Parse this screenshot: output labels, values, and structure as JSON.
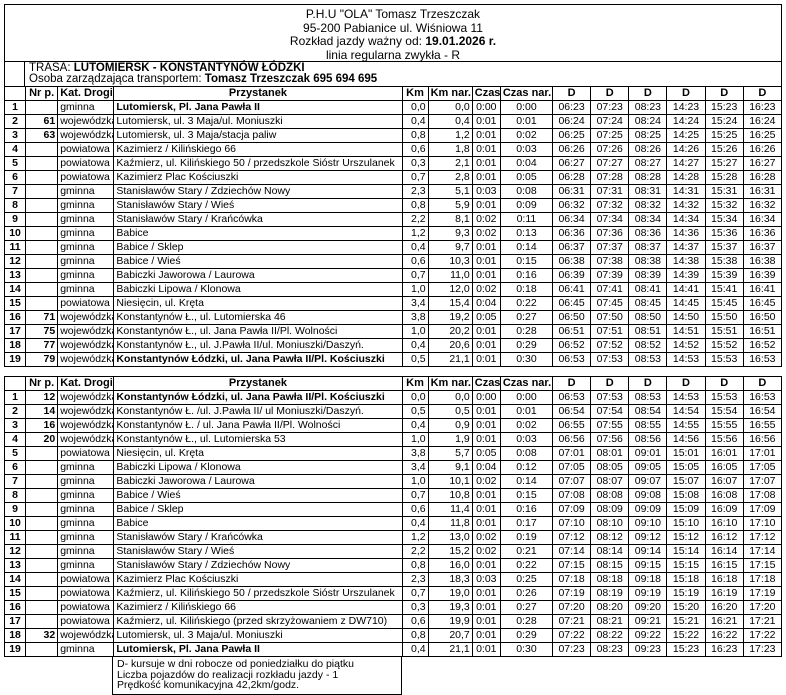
{
  "header": {
    "company": "P.H.U \"OLA\" Tomasz Trzeszczak",
    "address": "95-200 Pabianice ul. Wiśniowa 11",
    "valid_label": "Rozkład jazdy ważny od:",
    "valid_date": "19.01.2026 r.",
    "line_type": "linia regularna zwykła - R"
  },
  "route": {
    "trasa_label": "TRASA:",
    "trasa_value": "LUTOMIERSK - KONSTANTYNÓW ŁÓDZKI",
    "manager_label": "Osoba zarządzająca transportem:",
    "manager_value": "Tomasz Trzeszczak 695 694 695"
  },
  "columns": [
    "Nr p.",
    "Kat. Drogi",
    "Przystanek",
    "Km",
    "Km nar.",
    "Czas",
    "Czas nar.",
    "D",
    "D",
    "D",
    "D",
    "D",
    "D"
  ],
  "tables": [
    {
      "rows": [
        {
          "no": "1",
          "nr": "",
          "kat": "gminna",
          "stop": "Lutomiersk, Pl. Jana Pawła II",
          "bold": true,
          "km": "0,0",
          "km_nar": "0,0",
          "czas": "0:00",
          "czas_nar": "0:00",
          "d": [
            "06:23",
            "07:23",
            "08:23",
            "14:23",
            "15:23",
            "16:23"
          ]
        },
        {
          "no": "2",
          "nr": "61",
          "kat": "wojewódzka",
          "stop": "Lutomiersk, ul. 3 Maja/ul. Moniuszki",
          "bold": false,
          "km": "0,4",
          "km_nar": "0,4",
          "czas": "0:01",
          "czas_nar": "0:01",
          "d": [
            "06:24",
            "07:24",
            "08:24",
            "14:24",
            "15:24",
            "16:24"
          ]
        },
        {
          "no": "3",
          "nr": "63",
          "kat": "wojewódzka",
          "stop": "Lutomiersk, ul. 3 Maja/stacja paliw",
          "bold": false,
          "km": "0,8",
          "km_nar": "1,2",
          "czas": "0:01",
          "czas_nar": "0:02",
          "d": [
            "06:25",
            "07:25",
            "08:25",
            "14:25",
            "15:25",
            "16:25"
          ]
        },
        {
          "no": "4",
          "nr": "",
          "kat": "powiatowa",
          "stop": "Kazimierz / Kilińskiego 66",
          "bold": false,
          "km": "0,6",
          "km_nar": "1,8",
          "czas": "0:01",
          "czas_nar": "0:03",
          "d": [
            "06:26",
            "07:26",
            "08:26",
            "14:26",
            "15:26",
            "16:26"
          ]
        },
        {
          "no": "5",
          "nr": "",
          "kat": "powiatowa",
          "stop": "Kaźmierz, ul. Kilińskiego 50 / przedszkole Sióstr Urszulanek",
          "bold": false,
          "km": "0,3",
          "km_nar": "2,1",
          "czas": "0:01",
          "czas_nar": "0:04",
          "d": [
            "06:27",
            "07:27",
            "08:27",
            "14:27",
            "15:27",
            "16:27"
          ]
        },
        {
          "no": "6",
          "nr": "",
          "kat": "powiatowa",
          "stop": "Kazimierz Plac Kościuszki",
          "bold": false,
          "km": "0,7",
          "km_nar": "2,8",
          "czas": "0:01",
          "czas_nar": "0:05",
          "d": [
            "06:28",
            "07:28",
            "08:28",
            "14:28",
            "15:28",
            "16:28"
          ]
        },
        {
          "no": "7",
          "nr": "",
          "kat": "gminna",
          "stop": "Stanisławów Stary / Zdziechów Nowy",
          "bold": false,
          "km": "2,3",
          "km_nar": "5,1",
          "czas": "0:03",
          "czas_nar": "0:08",
          "d": [
            "06:31",
            "07:31",
            "08:31",
            "14:31",
            "15:31",
            "16:31"
          ]
        },
        {
          "no": "8",
          "nr": "",
          "kat": "gminna",
          "stop": "Stanisławów Stary / Wieś",
          "bold": false,
          "km": "0,8",
          "km_nar": "5,9",
          "czas": "0:01",
          "czas_nar": "0:09",
          "d": [
            "06:32",
            "07:32",
            "08:32",
            "14:32",
            "15:32",
            "16:32"
          ]
        },
        {
          "no": "9",
          "nr": "",
          "kat": "gminna",
          "stop": "Stanisławów Stary / Krańcówka",
          "bold": false,
          "km": "2,2",
          "km_nar": "8,1",
          "czas": "0:02",
          "czas_nar": "0:11",
          "d": [
            "06:34",
            "07:34",
            "08:34",
            "14:34",
            "15:34",
            "16:34"
          ]
        },
        {
          "no": "10",
          "nr": "",
          "kat": "gminna",
          "stop": "Babice",
          "bold": false,
          "km": "1,2",
          "km_nar": "9,3",
          "czas": "0:02",
          "czas_nar": "0:13",
          "d": [
            "06:36",
            "07:36",
            "08:36",
            "14:36",
            "15:36",
            "16:36"
          ]
        },
        {
          "no": "11",
          "nr": "",
          "kat": "gminna",
          "stop": "Babice / Sklep",
          "bold": false,
          "km": "0,4",
          "km_nar": "9,7",
          "czas": "0:01",
          "czas_nar": "0:14",
          "d": [
            "06:37",
            "07:37",
            "08:37",
            "14:37",
            "15:37",
            "16:37"
          ]
        },
        {
          "no": "12",
          "nr": "",
          "kat": "gminna",
          "stop": "Babice / Wieś",
          "bold": false,
          "km": "0,6",
          "km_nar": "10,3",
          "czas": "0:01",
          "czas_nar": "0:15",
          "d": [
            "06:38",
            "07:38",
            "08:38",
            "14:38",
            "15:38",
            "16:38"
          ]
        },
        {
          "no": "13",
          "nr": "",
          "kat": "gminna",
          "stop": "Babiczki Jaworowa / Laurowa",
          "bold": false,
          "km": "0,7",
          "km_nar": "11,0",
          "czas": "0:01",
          "czas_nar": "0:16",
          "d": [
            "06:39",
            "07:39",
            "08:39",
            "14:39",
            "15:39",
            "16:39"
          ]
        },
        {
          "no": "14",
          "nr": "",
          "kat": "gminna",
          "stop": "Babiczki Lipowa / Klonowa",
          "bold": false,
          "km": "1,0",
          "km_nar": "12,0",
          "czas": "0:02",
          "czas_nar": "0:18",
          "d": [
            "06:41",
            "07:41",
            "08:41",
            "14:41",
            "15:41",
            "16:41"
          ]
        },
        {
          "no": "15",
          "nr": "",
          "kat": "powiatowa",
          "stop": "Niesięcin, ul. Kręta",
          "bold": false,
          "km": "3,4",
          "km_nar": "15,4",
          "czas": "0:04",
          "czas_nar": "0:22",
          "d": [
            "06:45",
            "07:45",
            "08:45",
            "14:45",
            "15:45",
            "16:45"
          ]
        },
        {
          "no": "16",
          "nr": "71",
          "kat": "wojewódzka",
          "stop": "Konstantynów Ł., ul. Lutomierska 46",
          "bold": false,
          "km": "3,8",
          "km_nar": "19,2",
          "czas": "0:05",
          "czas_nar": "0:27",
          "d": [
            "06:50",
            "07:50",
            "08:50",
            "14:50",
            "15:50",
            "16:50"
          ]
        },
        {
          "no": "17",
          "nr": "75",
          "kat": "wojewódzka",
          "stop": "Konstantynów Ł., ul. Jana Pawła II/Pl. Wolności",
          "bold": false,
          "km": "1,0",
          "km_nar": "20,2",
          "czas": "0:01",
          "czas_nar": "0:28",
          "d": [
            "06:51",
            "07:51",
            "08:51",
            "14:51",
            "15:51",
            "16:51"
          ]
        },
        {
          "no": "18",
          "nr": "77",
          "kat": "wojewódzka",
          "stop": "Konstantynów Ł., ul. J.Pawła II/ul. Moniuszki/Daszyń.",
          "bold": false,
          "km": "0,4",
          "km_nar": "20,6",
          "czas": "0:01",
          "czas_nar": "0:29",
          "d": [
            "06:52",
            "07:52",
            "08:52",
            "14:52",
            "15:52",
            "16:52"
          ]
        },
        {
          "no": "19",
          "nr": "79",
          "kat": "wojewódzka",
          "stop": "Konstantynów Łódzki, ul. Jana Pawła II/Pl. Kościuszki",
          "bold": true,
          "km": "0,5",
          "km_nar": "21,1",
          "czas": "0:01",
          "czas_nar": "0:30",
          "d": [
            "06:53",
            "07:53",
            "08:53",
            "14:53",
            "15:53",
            "16:53"
          ]
        }
      ]
    },
    {
      "rows": [
        {
          "no": "1",
          "nr": "12",
          "kat": "wojewódzka",
          "stop": "Konstantynów Łódzki, ul. Jana Pawła II/Pl. Kościuszki",
          "bold": true,
          "km": "0,0",
          "km_nar": "0,0",
          "czas": "0:00",
          "czas_nar": "0:00",
          "d": [
            "06:53",
            "07:53",
            "08:53",
            "14:53",
            "15:53",
            "16:53"
          ]
        },
        {
          "no": "2",
          "nr": "14",
          "kat": "wojewódzka",
          "stop": "Konstantynów Ł. /ul. J.Pawła II/ ul Moniuszki/Daszyń.",
          "bold": false,
          "km": "0,5",
          "km_nar": "0,5",
          "czas": "0:01",
          "czas_nar": "0:01",
          "d": [
            "06:54",
            "07:54",
            "08:54",
            "14:54",
            "15:54",
            "16:54"
          ]
        },
        {
          "no": "3",
          "nr": "16",
          "kat": "wojewódzka",
          "stop": "Konstantynów Ł. / ul. Jana Pawła II/Pl. Wolności",
          "bold": false,
          "km": "0,4",
          "km_nar": "0,9",
          "czas": "0:01",
          "czas_nar": "0:02",
          "d": [
            "06:55",
            "07:55",
            "08:55",
            "14:55",
            "15:55",
            "16:55"
          ]
        },
        {
          "no": "4",
          "nr": "20",
          "kat": "wojewódzka",
          "stop": "Konstantynów Ł., ul. Lutomierska 53",
          "bold": false,
          "km": "1,0",
          "km_nar": "1,9",
          "czas": "0:01",
          "czas_nar": "0:03",
          "d": [
            "06:56",
            "07:56",
            "08:56",
            "14:56",
            "15:56",
            "16:56"
          ]
        },
        {
          "no": "5",
          "nr": "",
          "kat": "powiatowa",
          "stop": "Niesięcin, ul. Kręta",
          "bold": false,
          "km": "3,8",
          "km_nar": "5,7",
          "czas": "0:05",
          "czas_nar": "0:08",
          "d": [
            "07:01",
            "08:01",
            "09:01",
            "15:01",
            "16:01",
            "17:01"
          ]
        },
        {
          "no": "6",
          "nr": "",
          "kat": "gminna",
          "stop": "Babiczki Lipowa / Klonowa",
          "bold": false,
          "km": "3,4",
          "km_nar": "9,1",
          "czas": "0:04",
          "czas_nar": "0:12",
          "d": [
            "07:05",
            "08:05",
            "09:05",
            "15:05",
            "16:05",
            "17:05"
          ]
        },
        {
          "no": "7",
          "nr": "",
          "kat": "gminna",
          "stop": "Babiczki Jaworowa / Laurowa",
          "bold": false,
          "km": "1,0",
          "km_nar": "10,1",
          "czas": "0:02",
          "czas_nar": "0:14",
          "d": [
            "07:07",
            "08:07",
            "09:07",
            "15:07",
            "16:07",
            "17:07"
          ]
        },
        {
          "no": "8",
          "nr": "",
          "kat": "gminna",
          "stop": "Babice / Wieś",
          "bold": false,
          "km": "0,7",
          "km_nar": "10,8",
          "czas": "0:01",
          "czas_nar": "0:15",
          "d": [
            "07:08",
            "08:08",
            "09:08",
            "15:08",
            "16:08",
            "17:08"
          ]
        },
        {
          "no": "9",
          "nr": "",
          "kat": "gminna",
          "stop": "Babice / Sklep",
          "bold": false,
          "km": "0,6",
          "km_nar": "11,4",
          "czas": "0:01",
          "czas_nar": "0:16",
          "d": [
            "07:09",
            "08:09",
            "09:09",
            "15:09",
            "16:09",
            "17:09"
          ]
        },
        {
          "no": "10",
          "nr": "",
          "kat": "gminna",
          "stop": "Babice",
          "bold": false,
          "km": "0,4",
          "km_nar": "11,8",
          "czas": "0:01",
          "czas_nar": "0:17",
          "d": [
            "07:10",
            "08:10",
            "09:10",
            "15:10",
            "16:10",
            "17:10"
          ]
        },
        {
          "no": "11",
          "nr": "",
          "kat": "gminna",
          "stop": "Stanisławów Stary / Krańcówka",
          "bold": false,
          "km": "1,2",
          "km_nar": "13,0",
          "czas": "0:02",
          "czas_nar": "0:19",
          "d": [
            "07:12",
            "08:12",
            "09:12",
            "15:12",
            "16:12",
            "17:12"
          ]
        },
        {
          "no": "12",
          "nr": "",
          "kat": "gminna",
          "stop": "Stanisławów Stary / Wieś",
          "bold": false,
          "km": "2,2",
          "km_nar": "15,2",
          "czas": "0:02",
          "czas_nar": "0:21",
          "d": [
            "07:14",
            "08:14",
            "09:14",
            "15:14",
            "16:14",
            "17:14"
          ]
        },
        {
          "no": "13",
          "nr": "",
          "kat": "gminna",
          "stop": "Stanisławów Stary / Zdziechów Nowy",
          "bold": false,
          "km": "0,8",
          "km_nar": "16,0",
          "czas": "0:01",
          "czas_nar": "0:22",
          "d": [
            "07:15",
            "08:15",
            "09:15",
            "15:15",
            "16:15",
            "17:15"
          ]
        },
        {
          "no": "14",
          "nr": "",
          "kat": "powiatowa",
          "stop": "Kazimierz Plac Kościuszki",
          "bold": false,
          "km": "2,3",
          "km_nar": "18,3",
          "czas": "0:03",
          "czas_nar": "0:25",
          "d": [
            "07:18",
            "08:18",
            "09:18",
            "15:18",
            "16:18",
            "17:18"
          ]
        },
        {
          "no": "15",
          "nr": "",
          "kat": "powiatowa",
          "stop": "Kaźmierz, ul. Kilińskiego 50 / przedszkole Sióstr Urszulanek",
          "bold": false,
          "km": "0,7",
          "km_nar": "19,0",
          "czas": "0:01",
          "czas_nar": "0:26",
          "d": [
            "07:19",
            "08:19",
            "09:19",
            "15:19",
            "16:19",
            "17:19"
          ]
        },
        {
          "no": "16",
          "nr": "",
          "kat": "powiatowa",
          "stop": "Kazimierz / Kilińskiego 66",
          "bold": false,
          "km": "0,3",
          "km_nar": "19,3",
          "czas": "0:01",
          "czas_nar": "0:27",
          "d": [
            "07:20",
            "08:20",
            "09:20",
            "15:20",
            "16:20",
            "17:20"
          ]
        },
        {
          "no": "17",
          "nr": "",
          "kat": "powiatowa",
          "stop": "Kaźmierz, ul. Kilińskiego (przed skrzyżowaniem z DW710)",
          "bold": false,
          "km": "0,6",
          "km_nar": "19,9",
          "czas": "0:01",
          "czas_nar": "0:28",
          "d": [
            "07:21",
            "08:21",
            "09:21",
            "15:21",
            "16:21",
            "17:21"
          ]
        },
        {
          "no": "18",
          "nr": "32",
          "kat": "wojewódzka",
          "stop": "Lutomiersk, ul. 3 Maja/ul. Moniuszki",
          "bold": false,
          "km": "0,8",
          "km_nar": "20,7",
          "czas": "0:01",
          "czas_nar": "0:29",
          "d": [
            "07:22",
            "08:22",
            "09:22",
            "15:22",
            "16:22",
            "17:22"
          ]
        },
        {
          "no": "19",
          "nr": "",
          "kat": "gminna",
          "stop": "Lutomiersk, Pl. Jana Pawła II",
          "bold": true,
          "km": "0,4",
          "km_nar": "21,1",
          "czas": "0:01",
          "czas_nar": "0:30",
          "d": [
            "07:23",
            "08:23",
            "09:23",
            "15:23",
            "16:23",
            "17:23"
          ]
        }
      ]
    }
  ],
  "notes": [
    "D- kursuje w dni robocze od poniedziałku do piątku",
    "Liczba pojazdów do realizacji rozkładu jazdy - 1",
    "Prędkość komunikacyjna 42,2km/godz."
  ]
}
